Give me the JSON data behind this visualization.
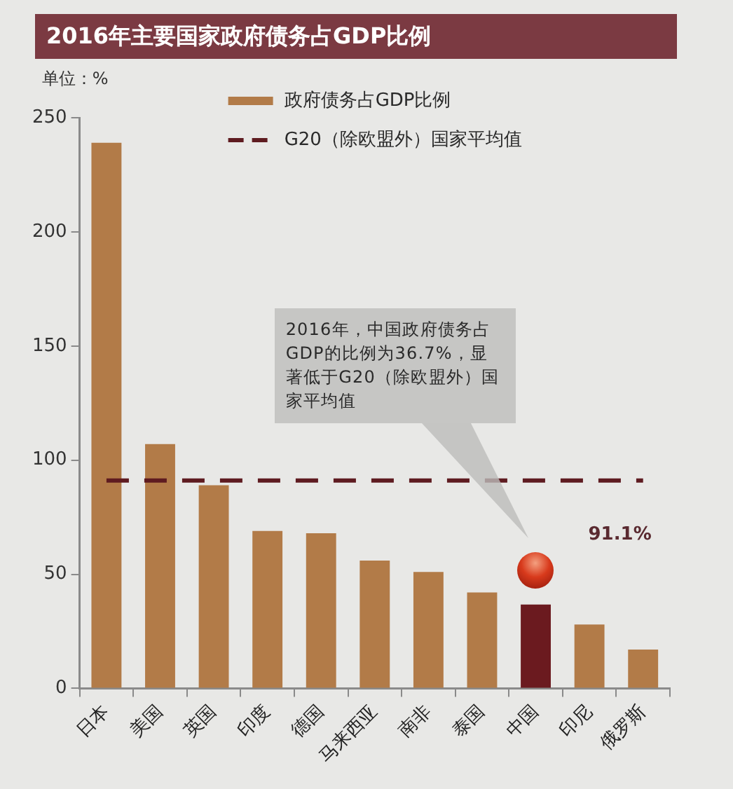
{
  "chart_data": {
    "type": "bar",
    "title": "2016年主要国家政府债务占GDP比例",
    "ylabel": "单位：%",
    "categories": [
      "日本",
      "美国",
      "英国",
      "印度",
      "德国",
      "马来西亚",
      "南非",
      "泰国",
      "中国",
      "印尼",
      "俄罗斯"
    ],
    "series": [
      {
        "name": "政府债务占GDP比例",
        "colors": [
          "#b27b48",
          "#b27b48",
          "#b27b48",
          "#b27b48",
          "#b27b48",
          "#b27b48",
          "#b27b48",
          "#b27b48",
          "#6b1a1f",
          "#b27b48",
          "#b27b48"
        ],
        "values": [
          239,
          107,
          89,
          69,
          68,
          56,
          51,
          42,
          36.7,
          28,
          17
        ]
      }
    ],
    "ylim": [
      0,
      250
    ],
    "yticks": [
      0,
      50,
      100,
      150,
      200,
      250
    ],
    "legend": "top",
    "ref_lines": [
      {
        "axis": "y",
        "value": 91.1,
        "label": "G20（除欧盟外）国家平均值",
        "color": "#5e1b20",
        "line_style": "dashed"
      }
    ],
    "annotations": [
      {
        "text": "91.1%",
        "y": 91.1
      },
      "2016年，中国政府债务占GDP的比例为36.7%，显著低于G20（除欧盟外）国家平均值"
    ]
  }
}
